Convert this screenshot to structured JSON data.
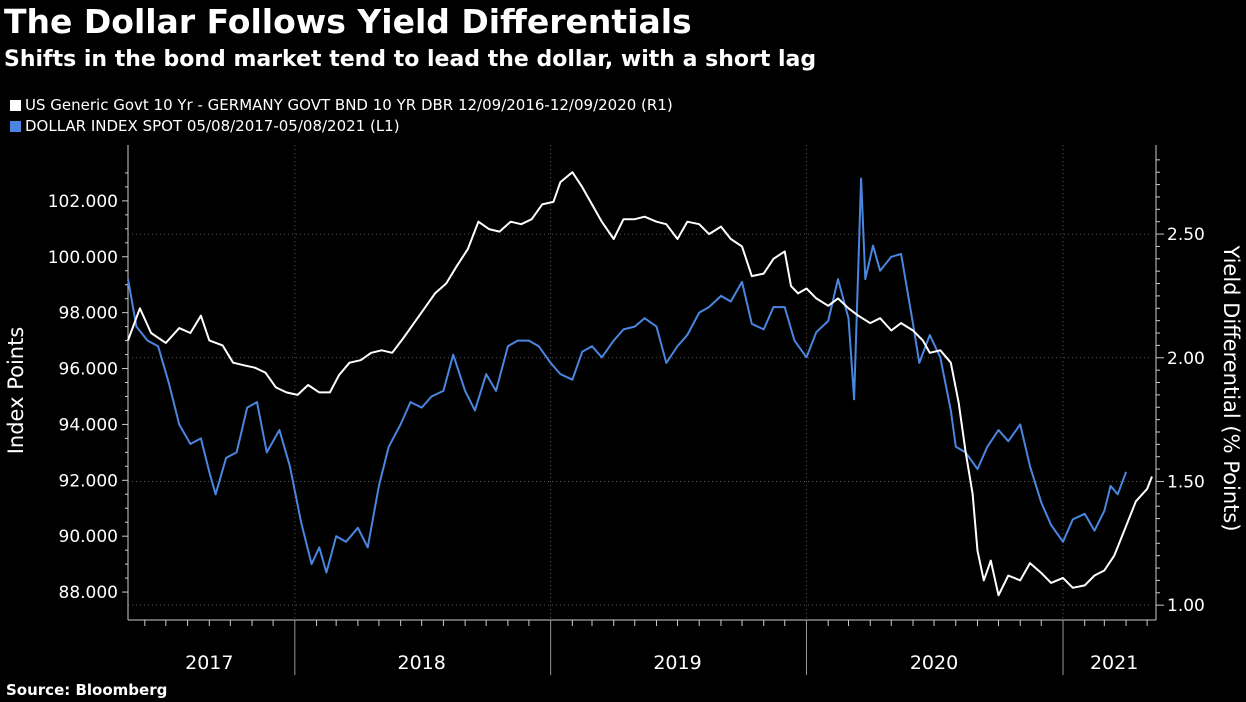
{
  "header": {
    "title": "The Dollar Follows Yield Differentials",
    "subtitle": "Shifts in the bond market tend to lead the dollar, with a short lag"
  },
  "legend": [
    {
      "label": "US Generic Govt 10 Yr - GERMANY GOVT BND 10 YR DBR 12/09/2016-12/09/2020 (R1)",
      "color": "#ffffff"
    },
    {
      "label": "DOLLAR INDEX SPOT 05/08/2017-05/08/2021 (L1)",
      "color": "#4a86e0"
    }
  ],
  "source": "Source: Bloomberg",
  "colors": {
    "background": "#000000",
    "dollar": "#4a86e0",
    "yield": "#ffffff",
    "grid": "#555555"
  },
  "chart_data": {
    "type": "line",
    "title": "The Dollar Follows Yield Differentials",
    "subtitle": "Shifts in the bond market tend to lead the dollar, with a short lag",
    "left_axis": {
      "label": "Index Points",
      "range": [
        87.0,
        104.0
      ],
      "ticks": [
        "88.000",
        "90.000",
        "92.000",
        "94.000",
        "96.000",
        "98.000",
        "100.000",
        "102.000"
      ],
      "tick_values": [
        88,
        90,
        92,
        94,
        96,
        98,
        100,
        102
      ]
    },
    "right_axis": {
      "label": "Yield Differential (% Points)",
      "range": [
        0.94,
        2.86
      ],
      "ticks": [
        "1.00",
        "1.50",
        "2.00",
        "2.50"
      ],
      "tick_values": [
        1.0,
        1.5,
        2.0,
        2.5
      ]
    },
    "x_axis": {
      "range": [
        "2017-05-08",
        "2021-05-08"
      ],
      "labels": [
        {
          "text": "2017",
          "date": "2017-09-01"
        },
        {
          "text": "2018",
          "date": "2018-07-01"
        },
        {
          "text": "2019",
          "date": "2019-07-01"
        },
        {
          "text": "2020",
          "date": "2020-07-01"
        },
        {
          "text": "2021",
          "date": "2021-03-15"
        }
      ],
      "gridlines": [
        "2018-01-01",
        "2019-01-01",
        "2020-01-01",
        "2021-01-01"
      ]
    },
    "grid": true,
    "legend_position": "top-left",
    "series": [
      {
        "name": "DOLLAR INDEX SPOT 05/08/2017-05/08/2021 (L1)",
        "axis": "left",
        "color": "#4a86e0",
        "points": [
          [
            "2017-05-08",
            99.2
          ],
          [
            "2017-05-20",
            97.5
          ],
          [
            "2017-06-05",
            97.0
          ],
          [
            "2017-06-20",
            96.8
          ],
          [
            "2017-07-05",
            95.5
          ],
          [
            "2017-07-20",
            94.0
          ],
          [
            "2017-08-05",
            93.3
          ],
          [
            "2017-08-20",
            93.5
          ],
          [
            "2017-09-01",
            92.3
          ],
          [
            "2017-09-10",
            91.5
          ],
          [
            "2017-09-25",
            92.8
          ],
          [
            "2017-10-10",
            93.0
          ],
          [
            "2017-10-25",
            94.6
          ],
          [
            "2017-11-08",
            94.8
          ],
          [
            "2017-11-22",
            93.0
          ],
          [
            "2017-12-10",
            93.8
          ],
          [
            "2017-12-25",
            92.5
          ],
          [
            "2018-01-10",
            90.5
          ],
          [
            "2018-01-25",
            89.0
          ],
          [
            "2018-02-05",
            89.6
          ],
          [
            "2018-02-15",
            88.7
          ],
          [
            "2018-03-01",
            90.0
          ],
          [
            "2018-03-15",
            89.8
          ],
          [
            "2018-04-01",
            90.3
          ],
          [
            "2018-04-15",
            89.6
          ],
          [
            "2018-05-01",
            91.8
          ],
          [
            "2018-05-15",
            93.2
          ],
          [
            "2018-06-01",
            94.0
          ],
          [
            "2018-06-15",
            94.8
          ],
          [
            "2018-07-01",
            94.6
          ],
          [
            "2018-07-15",
            95.0
          ],
          [
            "2018-08-01",
            95.2
          ],
          [
            "2018-08-15",
            96.5
          ],
          [
            "2018-09-01",
            95.2
          ],
          [
            "2018-09-15",
            94.5
          ],
          [
            "2018-10-01",
            95.8
          ],
          [
            "2018-10-15",
            95.2
          ],
          [
            "2018-11-01",
            96.8
          ],
          [
            "2018-11-15",
            97.0
          ],
          [
            "2018-12-01",
            97.0
          ],
          [
            "2018-12-15",
            96.8
          ],
          [
            "2019-01-01",
            96.2
          ],
          [
            "2019-01-15",
            95.8
          ],
          [
            "2019-02-01",
            95.6
          ],
          [
            "2019-02-15",
            96.6
          ],
          [
            "2019-03-01",
            96.8
          ],
          [
            "2019-03-15",
            96.4
          ],
          [
            "2019-04-01",
            97.0
          ],
          [
            "2019-04-15",
            97.4
          ],
          [
            "2019-05-01",
            97.5
          ],
          [
            "2019-05-15",
            97.8
          ],
          [
            "2019-06-01",
            97.5
          ],
          [
            "2019-06-15",
            96.2
          ],
          [
            "2019-07-01",
            96.8
          ],
          [
            "2019-07-15",
            97.2
          ],
          [
            "2019-08-01",
            98.0
          ],
          [
            "2019-08-15",
            98.2
          ],
          [
            "2019-09-01",
            98.6
          ],
          [
            "2019-09-15",
            98.4
          ],
          [
            "2019-10-01",
            99.1
          ],
          [
            "2019-10-15",
            97.6
          ],
          [
            "2019-11-01",
            97.4
          ],
          [
            "2019-11-15",
            98.2
          ],
          [
            "2019-12-01",
            98.2
          ],
          [
            "2019-12-15",
            97.0
          ],
          [
            "2020-01-01",
            96.4
          ],
          [
            "2020-01-15",
            97.3
          ],
          [
            "2020-02-01",
            97.7
          ],
          [
            "2020-02-15",
            99.2
          ],
          [
            "2020-03-01",
            97.8
          ],
          [
            "2020-03-09",
            94.9
          ],
          [
            "2020-03-19",
            102.8
          ],
          [
            "2020-03-25",
            99.2
          ],
          [
            "2020-04-05",
            100.4
          ],
          [
            "2020-04-15",
            99.5
          ],
          [
            "2020-05-01",
            100.0
          ],
          [
            "2020-05-15",
            100.1
          ],
          [
            "2020-06-01",
            97.6
          ],
          [
            "2020-06-10",
            96.2
          ],
          [
            "2020-06-25",
            97.2
          ],
          [
            "2020-07-10",
            96.4
          ],
          [
            "2020-07-25",
            94.5
          ],
          [
            "2020-08-01",
            93.2
          ],
          [
            "2020-08-15",
            93.0
          ],
          [
            "2020-09-01",
            92.4
          ],
          [
            "2020-09-15",
            93.2
          ],
          [
            "2020-10-01",
            93.8
          ],
          [
            "2020-10-15",
            93.4
          ],
          [
            "2020-11-01",
            94.0
          ],
          [
            "2020-11-15",
            92.5
          ],
          [
            "2020-12-01",
            91.2
          ],
          [
            "2020-12-15",
            90.4
          ],
          [
            "2021-01-01",
            89.8
          ],
          [
            "2021-01-15",
            90.6
          ],
          [
            "2021-02-01",
            90.8
          ],
          [
            "2021-02-15",
            90.2
          ],
          [
            "2021-03-01",
            90.9
          ],
          [
            "2021-03-10",
            91.8
          ],
          [
            "2021-03-20",
            91.5
          ],
          [
            "2021-04-01",
            92.3
          ]
        ]
      },
      {
        "name": "US Generic Govt 10 Yr - GERMANY GOVT BND 10 YR DBR 12/09/2016-12/09/2020 (R1)",
        "axis": "right",
        "color": "#ffffff",
        "points": [
          [
            "2017-05-08",
            2.07
          ],
          [
            "2017-05-25",
            2.2
          ],
          [
            "2017-06-10",
            2.1
          ],
          [
            "2017-07-01",
            2.06
          ],
          [
            "2017-07-20",
            2.12
          ],
          [
            "2017-08-05",
            2.1
          ],
          [
            "2017-08-20",
            2.17
          ],
          [
            "2017-09-01",
            2.07
          ],
          [
            "2017-09-20",
            2.05
          ],
          [
            "2017-10-05",
            1.98
          ],
          [
            "2017-10-20",
            1.97
          ],
          [
            "2017-11-05",
            1.96
          ],
          [
            "2017-11-20",
            1.94
          ],
          [
            "2017-12-05",
            1.88
          ],
          [
            "2017-12-20",
            1.86
          ],
          [
            "2018-01-05",
            1.85
          ],
          [
            "2018-01-20",
            1.89
          ],
          [
            "2018-02-05",
            1.86
          ],
          [
            "2018-02-20",
            1.86
          ],
          [
            "2018-03-05",
            1.93
          ],
          [
            "2018-03-20",
            1.98
          ],
          [
            "2018-04-05",
            1.99
          ],
          [
            "2018-04-20",
            2.02
          ],
          [
            "2018-05-05",
            2.03
          ],
          [
            "2018-05-20",
            2.02
          ],
          [
            "2018-06-05",
            2.08
          ],
          [
            "2018-06-20",
            2.14
          ],
          [
            "2018-07-05",
            2.2
          ],
          [
            "2018-07-20",
            2.26
          ],
          [
            "2018-08-05",
            2.3
          ],
          [
            "2018-08-20",
            2.37
          ],
          [
            "2018-09-05",
            2.44
          ],
          [
            "2018-09-20",
            2.55
          ],
          [
            "2018-10-05",
            2.52
          ],
          [
            "2018-10-20",
            2.51
          ],
          [
            "2018-11-05",
            2.55
          ],
          [
            "2018-11-20",
            2.54
          ],
          [
            "2018-12-05",
            2.56
          ],
          [
            "2018-12-20",
            2.62
          ],
          [
            "2019-01-05",
            2.63
          ],
          [
            "2019-01-15",
            2.71
          ],
          [
            "2019-02-01",
            2.75
          ],
          [
            "2019-02-15",
            2.69
          ],
          [
            "2019-03-01",
            2.62
          ],
          [
            "2019-03-15",
            2.55
          ],
          [
            "2019-04-01",
            2.48
          ],
          [
            "2019-04-15",
            2.56
          ],
          [
            "2019-05-01",
            2.56
          ],
          [
            "2019-05-15",
            2.57
          ],
          [
            "2019-06-01",
            2.55
          ],
          [
            "2019-06-15",
            2.54
          ],
          [
            "2019-07-01",
            2.48
          ],
          [
            "2019-07-15",
            2.55
          ],
          [
            "2019-08-01",
            2.54
          ],
          [
            "2019-08-15",
            2.5
          ],
          [
            "2019-09-01",
            2.53
          ],
          [
            "2019-09-15",
            2.48
          ],
          [
            "2019-10-01",
            2.45
          ],
          [
            "2019-10-15",
            2.33
          ],
          [
            "2019-11-01",
            2.34
          ],
          [
            "2019-11-15",
            2.4
          ],
          [
            "2019-12-01",
            2.43
          ],
          [
            "2019-12-10",
            2.29
          ],
          [
            "2019-12-20",
            2.26
          ],
          [
            "2020-01-01",
            2.28
          ],
          [
            "2020-01-15",
            2.24
          ],
          [
            "2020-02-01",
            2.21
          ],
          [
            "2020-02-15",
            2.24
          ],
          [
            "2020-03-01",
            2.2
          ],
          [
            "2020-03-15",
            2.17
          ],
          [
            "2020-04-01",
            2.14
          ],
          [
            "2020-04-15",
            2.16
          ],
          [
            "2020-05-01",
            2.11
          ],
          [
            "2020-05-15",
            2.14
          ],
          [
            "2020-06-01",
            2.11
          ],
          [
            "2020-06-15",
            2.07
          ],
          [
            "2020-06-25",
            2.02
          ],
          [
            "2020-07-10",
            2.03
          ],
          [
            "2020-07-25",
            1.98
          ],
          [
            "2020-08-05",
            1.82
          ],
          [
            "2020-08-15",
            1.62
          ],
          [
            "2020-08-25",
            1.45
          ],
          [
            "2020-09-01",
            1.22
          ],
          [
            "2020-09-10",
            1.1
          ],
          [
            "2020-09-20",
            1.18
          ],
          [
            "2020-10-01",
            1.04
          ],
          [
            "2020-10-15",
            1.12
          ],
          [
            "2020-11-01",
            1.1
          ],
          [
            "2020-11-15",
            1.17
          ],
          [
            "2020-12-01",
            1.13
          ],
          [
            "2020-12-15",
            1.09
          ],
          [
            "2021-01-01",
            1.11
          ],
          [
            "2021-01-15",
            1.07
          ],
          [
            "2021-02-01",
            1.08
          ],
          [
            "2021-02-15",
            1.12
          ],
          [
            "2021-03-01",
            1.14
          ],
          [
            "2021-03-15",
            1.2
          ],
          [
            "2021-04-01",
            1.32
          ],
          [
            "2021-04-15",
            1.42
          ],
          [
            "2021-05-01",
            1.47
          ],
          [
            "2021-05-08",
            1.52
          ]
        ]
      }
    ]
  }
}
